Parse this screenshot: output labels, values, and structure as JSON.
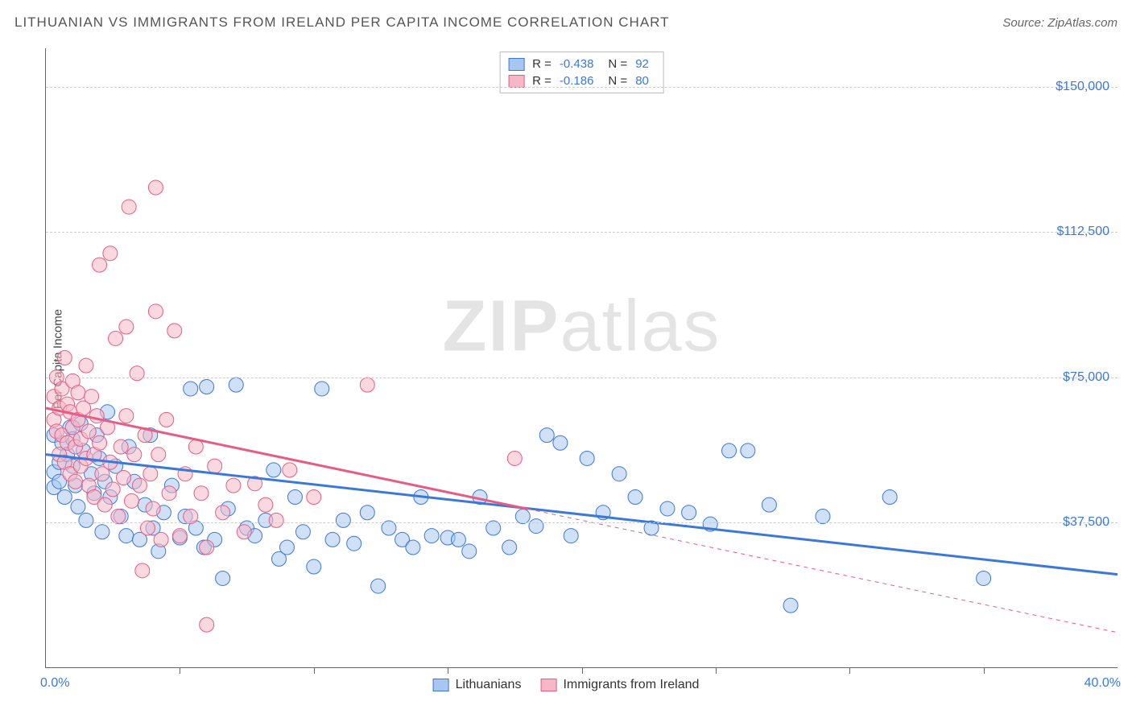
{
  "title": "LITHUANIAN VS IMMIGRANTS FROM IRELAND PER CAPITA INCOME CORRELATION CHART",
  "source_label": "Source:",
  "source_name": "ZipAtlas.com",
  "watermark_a": "ZIP",
  "watermark_b": "atlas",
  "axes": {
    "y_label": "Per Capita Income",
    "x_min_label": "0.0%",
    "x_max_label": "40.0%",
    "x_min": 0,
    "x_max": 40,
    "y_min": 0,
    "y_max": 160000,
    "y_gridlines": [
      37500,
      75000,
      112500,
      150000
    ],
    "y_tick_labels": [
      "$37,500",
      "$75,000",
      "$112,500",
      "$150,000"
    ],
    "x_ticks": [
      5,
      10,
      15,
      20,
      25,
      30,
      35
    ],
    "grid_color": "#cccccc",
    "axis_color": "#666666",
    "tick_label_color": "#3b78d8"
  },
  "legend_top": {
    "r_label": "R =",
    "n_label": "N =",
    "rows": [
      {
        "swatch_fill": "#a8c6f0",
        "swatch_border": "#3b78d8",
        "r": "-0.438",
        "n": "92"
      },
      {
        "swatch_fill": "#f6b8c6",
        "swatch_border": "#e75c84",
        "r": "-0.186",
        "n": "80"
      }
    ]
  },
  "legend_bottom": {
    "items": [
      {
        "label": "Lithuanians",
        "swatch_fill": "#a8c6f0",
        "swatch_border": "#3b78d8"
      },
      {
        "label": "Immigrants from Ireland",
        "swatch_fill": "#f6b8c6",
        "swatch_border": "#e75c84"
      }
    ]
  },
  "chart": {
    "type": "scatter",
    "background_color": "#ffffff",
    "marker_radius": 9,
    "marker_opacity": 0.55,
    "series": [
      {
        "name": "Lithuanians",
        "fill": "#a8c6f0",
        "stroke": "#3b78d8",
        "trend": {
          "y_at_xmin": 55000,
          "y_at_xmax": 24000,
          "solid_until_x": 40,
          "line_width": 3
        },
        "points": [
          [
            0.3,
            60000
          ],
          [
            0.3,
            50500
          ],
          [
            0.3,
            46500
          ],
          [
            0.5,
            48000
          ],
          [
            0.5,
            53000
          ],
          [
            0.6,
            58000
          ],
          [
            0.7,
            44000
          ],
          [
            0.8,
            55000
          ],
          [
            0.9,
            62000
          ],
          [
            1.0,
            59000
          ],
          [
            1.0,
            52000
          ],
          [
            1.1,
            47000
          ],
          [
            1.2,
            41500
          ],
          [
            1.3,
            63000
          ],
          [
            1.4,
            56000
          ],
          [
            1.5,
            38000
          ],
          [
            1.7,
            50000
          ],
          [
            1.8,
            45000
          ],
          [
            1.9,
            60000
          ],
          [
            2.0,
            54000
          ],
          [
            2.1,
            35000
          ],
          [
            2.2,
            48000
          ],
          [
            2.3,
            66000
          ],
          [
            2.4,
            44000
          ],
          [
            2.6,
            52000
          ],
          [
            2.8,
            39000
          ],
          [
            3.0,
            34000
          ],
          [
            3.1,
            57000
          ],
          [
            3.3,
            48000
          ],
          [
            3.5,
            33000
          ],
          [
            3.7,
            42000
          ],
          [
            3.9,
            60000
          ],
          [
            4.0,
            36000
          ],
          [
            4.2,
            30000
          ],
          [
            4.4,
            40000
          ],
          [
            4.7,
            47000
          ],
          [
            5.0,
            33500
          ],
          [
            5.2,
            39000
          ],
          [
            5.4,
            72000
          ],
          [
            5.6,
            36000
          ],
          [
            5.9,
            31000
          ],
          [
            6.0,
            72500
          ],
          [
            6.3,
            33000
          ],
          [
            6.6,
            23000
          ],
          [
            6.8,
            41000
          ],
          [
            7.1,
            73000
          ],
          [
            7.5,
            36000
          ],
          [
            7.8,
            34000
          ],
          [
            8.2,
            38000
          ],
          [
            8.5,
            51000
          ],
          [
            8.7,
            28000
          ],
          [
            9.0,
            31000
          ],
          [
            9.3,
            44000
          ],
          [
            9.6,
            35000
          ],
          [
            10.0,
            26000
          ],
          [
            10.3,
            72000
          ],
          [
            10.7,
            33000
          ],
          [
            11.1,
            38000
          ],
          [
            11.5,
            32000
          ],
          [
            12.0,
            40000
          ],
          [
            12.4,
            21000
          ],
          [
            12.8,
            36000
          ],
          [
            13.3,
            33000
          ],
          [
            13.7,
            31000
          ],
          [
            14.0,
            44000
          ],
          [
            14.4,
            34000
          ],
          [
            15.0,
            33500
          ],
          [
            15.4,
            33000
          ],
          [
            15.8,
            30000
          ],
          [
            16.2,
            44000
          ],
          [
            16.7,
            36000
          ],
          [
            17.3,
            31000
          ],
          [
            17.8,
            39000
          ],
          [
            18.3,
            36500
          ],
          [
            18.7,
            60000
          ],
          [
            19.2,
            58000
          ],
          [
            19.6,
            34000
          ],
          [
            20.2,
            54000
          ],
          [
            20.8,
            40000
          ],
          [
            21.4,
            50000
          ],
          [
            22.0,
            44000
          ],
          [
            22.6,
            36000
          ],
          [
            23.2,
            41000
          ],
          [
            24.0,
            40000
          ],
          [
            24.8,
            37000
          ],
          [
            25.5,
            56000
          ],
          [
            26.2,
            56000
          ],
          [
            27.0,
            42000
          ],
          [
            27.8,
            16000
          ],
          [
            29.0,
            39000
          ],
          [
            31.5,
            44000
          ],
          [
            35.0,
            23000
          ]
        ]
      },
      {
        "name": "Immigrants from Ireland",
        "fill": "#f6b8c6",
        "stroke": "#e75c84",
        "trend": {
          "y_at_xmin": 67000,
          "y_at_xmax": 9000,
          "solid_until_x": 18,
          "line_width": 3
        },
        "points": [
          [
            0.3,
            64000
          ],
          [
            0.3,
            70000
          ],
          [
            0.4,
            61000
          ],
          [
            0.4,
            75000
          ],
          [
            0.5,
            67000
          ],
          [
            0.5,
            55000
          ],
          [
            0.6,
            72000
          ],
          [
            0.6,
            60000
          ],
          [
            0.7,
            53000
          ],
          [
            0.7,
            80000
          ],
          [
            0.8,
            68000
          ],
          [
            0.8,
            58000
          ],
          [
            0.9,
            66000
          ],
          [
            0.9,
            50000
          ],
          [
            1.0,
            74000
          ],
          [
            1.0,
            62000
          ],
          [
            1.1,
            57000
          ],
          [
            1.1,
            48000
          ],
          [
            1.2,
            71000
          ],
          [
            1.2,
            64000
          ],
          [
            1.3,
            59000
          ],
          [
            1.3,
            52000
          ],
          [
            1.4,
            67000
          ],
          [
            1.5,
            54000
          ],
          [
            1.5,
            78000
          ],
          [
            1.6,
            61000
          ],
          [
            1.6,
            47000
          ],
          [
            1.7,
            70000
          ],
          [
            1.8,
            55000
          ],
          [
            1.8,
            44000
          ],
          [
            1.9,
            65000
          ],
          [
            2.0,
            58000
          ],
          [
            2.0,
            104000
          ],
          [
            2.1,
            50000
          ],
          [
            2.2,
            42000
          ],
          [
            2.3,
            62000
          ],
          [
            2.4,
            53000
          ],
          [
            2.4,
            107000
          ],
          [
            2.5,
            46000
          ],
          [
            2.6,
            85000
          ],
          [
            2.7,
            39000
          ],
          [
            2.8,
            57000
          ],
          [
            2.9,
            49000
          ],
          [
            3.0,
            65000
          ],
          [
            3.0,
            88000
          ],
          [
            3.1,
            119000
          ],
          [
            3.2,
            43000
          ],
          [
            3.3,
            55000
          ],
          [
            3.4,
            76000
          ],
          [
            3.5,
            47000
          ],
          [
            3.6,
            25000
          ],
          [
            3.7,
            60000
          ],
          [
            3.8,
            36000
          ],
          [
            3.9,
            50000
          ],
          [
            4.0,
            41000
          ],
          [
            4.1,
            92000
          ],
          [
            4.1,
            124000
          ],
          [
            4.2,
            55000
          ],
          [
            4.3,
            33000
          ],
          [
            4.5,
            64000
          ],
          [
            4.6,
            45000
          ],
          [
            4.8,
            87000
          ],
          [
            5.0,
            34000
          ],
          [
            5.2,
            50000
          ],
          [
            5.4,
            39000
          ],
          [
            5.6,
            57000
          ],
          [
            5.8,
            45000
          ],
          [
            6.0,
            31000
          ],
          [
            6.0,
            11000
          ],
          [
            6.3,
            52000
          ],
          [
            6.6,
            40000
          ],
          [
            7.0,
            47000
          ],
          [
            7.4,
            35000
          ],
          [
            7.8,
            47500
          ],
          [
            8.2,
            42000
          ],
          [
            8.6,
            38000
          ],
          [
            9.1,
            51000
          ],
          [
            10.0,
            44000
          ],
          [
            12.0,
            73000
          ],
          [
            17.5,
            54000
          ]
        ]
      }
    ]
  }
}
